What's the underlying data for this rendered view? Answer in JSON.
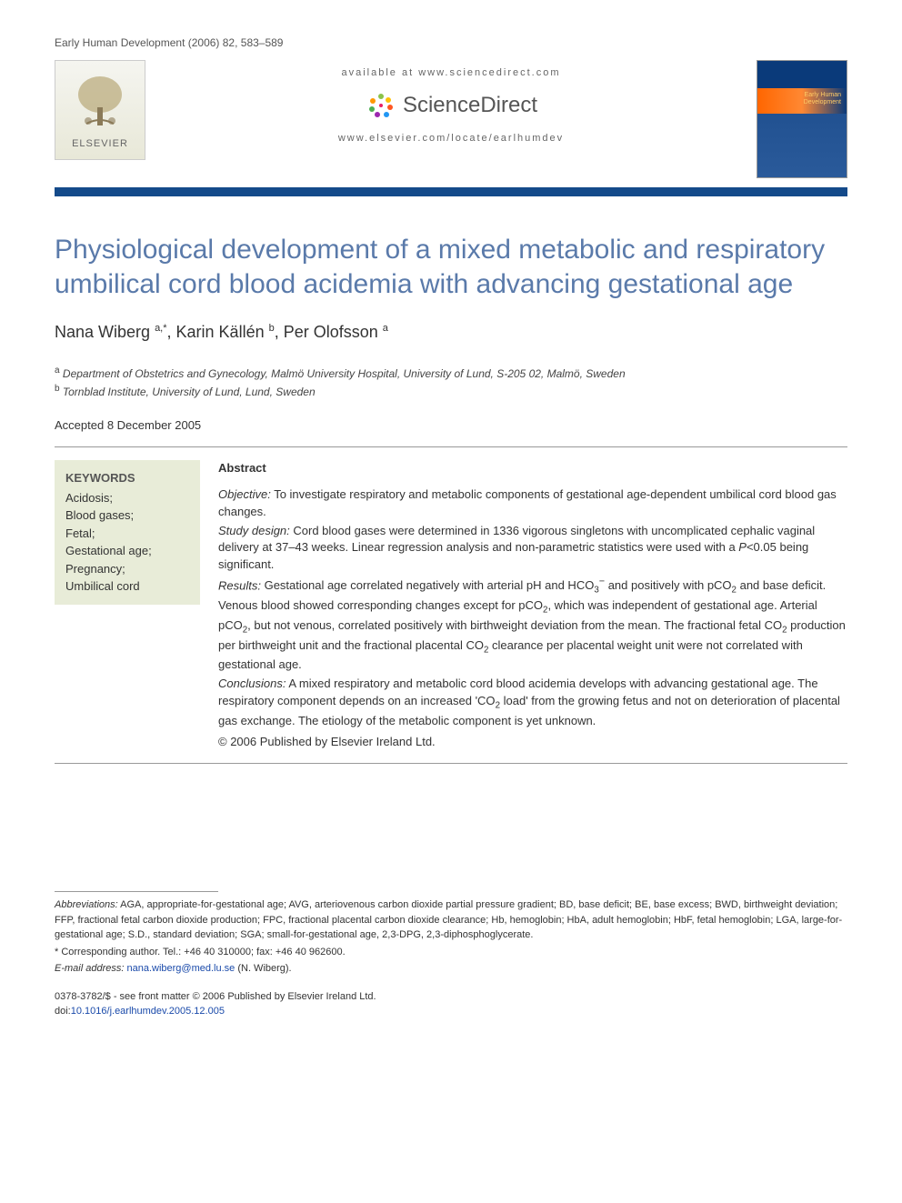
{
  "journal_header": "Early Human Development (2006) 82, 583–589",
  "header": {
    "available_at": "available at www.sciencedirect.com",
    "sciencedirect": "ScienceDirect",
    "journal_url": "www.elsevier.com/locate/earlhumdev",
    "publisher_name": "ELSEVIER",
    "cover_title_line1": "Early Human",
    "cover_title_line2": "Development"
  },
  "colors": {
    "title_color": "#5a7aaa",
    "divider_bar": "#144a8a",
    "keywords_bg": "#e8ecd8",
    "link_color": "#1a4aaa",
    "cover_bg_top": "#0a3a7a",
    "cover_bg_bottom": "#2a5a9a",
    "cover_band": "#ff6600",
    "sd_dot_colors": [
      "#8bc34a",
      "#ffc107",
      "#ff5722",
      "#2196f3",
      "#9c27b0",
      "#4caf50",
      "#ff9800",
      "#e91e63"
    ]
  },
  "title": "Physiological development of a mixed metabolic and respiratory umbilical cord blood acidemia with advancing gestational age",
  "authors_html": "Nana Wiberg <sup>a,*</sup>, Karin Källén <sup>b</sup>, Per Olofsson <sup>a</sup>",
  "affiliations": [
    "Department of Obstetrics and Gynecology, Malmö University Hospital, University of Lund, S-205 02, Malmö, Sweden",
    "Tornblad Institute, University of Lund, Lund, Sweden"
  ],
  "aff_markers": [
    "a",
    "b"
  ],
  "accepted": "Accepted 8 December 2005",
  "keywords": {
    "title": "KEYWORDS",
    "items": [
      "Acidosis;",
      "Blood gases;",
      "Fetal;",
      "Gestational age;",
      "Pregnancy;",
      "Umbilical cord"
    ]
  },
  "abstract": {
    "heading": "Abstract",
    "sections": [
      {
        "label": "Objective:",
        "text": " To investigate respiratory and metabolic components of gestational age-dependent umbilical cord blood gas changes."
      },
      {
        "label": "Study design:",
        "text": " Cord blood gases were determined in 1336 vigorous singletons with uncomplicated cephalic vaginal delivery at 37–43 weeks. Linear regression analysis and non-parametric statistics were used with a P<0.05 being significant."
      },
      {
        "label": "Results:",
        "text": " Gestational age correlated negatively with arterial pH and HCO₃⁻ and positively with pCO₂ and base deficit. Venous blood showed corresponding changes except for pCO₂, which was independent of gestational age. Arterial pCO₂, but not venous, correlated positively with birthweight deviation from the mean. The fractional fetal CO₂ production per birthweight unit and the fractional placental CO₂ clearance per placental weight unit were not correlated with gestational age."
      },
      {
        "label": "Conclusions:",
        "text": " A mixed respiratory and metabolic cord blood acidemia develops with advancing gestational age. The respiratory component depends on an increased 'CO₂ load' from the growing fetus and not on deterioration of placental gas exchange. The etiology of the metabolic component is yet unknown."
      }
    ],
    "copyright": "© 2006 Published by Elsevier Ireland Ltd."
  },
  "footnotes": {
    "abbreviations_label": "Abbreviations:",
    "abbreviations": " AGA, appropriate-for-gestational age; AVG, arteriovenous carbon dioxide partial pressure gradient; BD, base deficit; BE, base excess; BWD, birthweight deviation; FFP, fractional fetal carbon dioxide production; FPC, fractional placental carbon dioxide clearance; Hb, hemoglobin; HbA, adult hemoglobin; HbF, fetal hemoglobin; LGA, large-for-gestational age; S.D., standard deviation; SGA; small-for-gestational age, 2,3-DPG, 2,3-diphosphoglycerate.",
    "corresponding": "* Corresponding author. Tel.: +46 40 310000; fax: +46 40 962600.",
    "email_label": "E-mail address:",
    "email": "nana.wiberg@med.lu.se",
    "email_author": " (N. Wiberg)."
  },
  "article_id": {
    "issn_line": "0378-3782/$ - see front matter © 2006 Published by Elsevier Ireland Ltd.",
    "doi_prefix": "doi:",
    "doi": "10.1016/j.earlhumdev.2005.12.005"
  }
}
